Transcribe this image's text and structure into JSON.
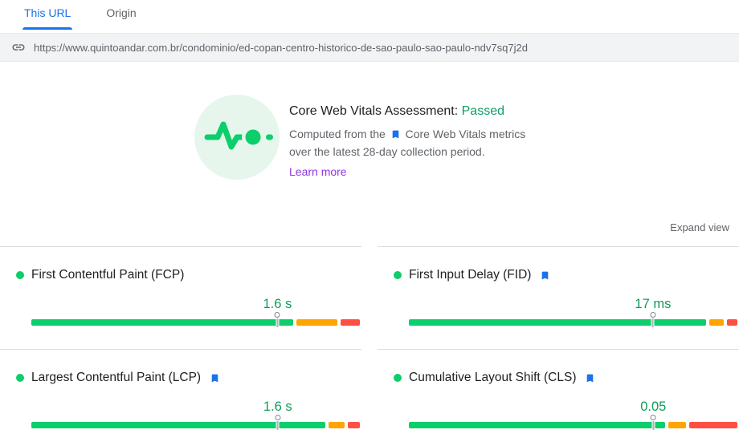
{
  "tabs": [
    {
      "label": "This URL",
      "active": true
    },
    {
      "label": "Origin",
      "active": false
    }
  ],
  "url_bar": {
    "icon": "link-icon",
    "url": "https://www.quintoandar.com.br/condominio/ed-copan-centro-historico-de-sao-paulo-sao-paulo-ndv7sq7j2d"
  },
  "assessment": {
    "icon": "pulse-icon",
    "title": "Core Web Vitals Assessment:",
    "result": "Passed",
    "line1_prefix": "Computed from the",
    "line1_metrics_label": "Core Web Vitals metrics",
    "line2": "over the latest 28-day collection period.",
    "learn_more": "Learn more"
  },
  "expand_view_label": "Expand view",
  "metrics": [
    {
      "label": "First Contentful Paint (FCP)",
      "value": "1.6 s",
      "status": "good",
      "bookmark": false,
      "distribution": {
        "good_pct": 81.3,
        "needs_improvement_pct": 12.8,
        "poor_pct": 5.9
      },
      "p75_marker_pct": 74.9
    },
    {
      "label": "First Input Delay (FID)",
      "value": "17 ms",
      "status": "good",
      "bookmark": true,
      "distribution": {
        "good_pct": 90.3,
        "needs_improvement_pct": 4.4,
        "poor_pct": 3.2
      },
      "p75_marker_pct": 74.3
    },
    {
      "label": "Largest Contentful Paint (LCP)",
      "value": "1.6 s",
      "status": "good",
      "bookmark": true,
      "distribution": {
        "good_pct": 90.0,
        "needs_improvement_pct": 4.9,
        "poor_pct": 3.7
      },
      "p75_marker_pct": 75.0
    },
    {
      "label": "Cumulative Layout Shift (CLS)",
      "value": "0.05",
      "status": "good",
      "bookmark": true,
      "distribution": {
        "good_pct": 78.6,
        "needs_improvement_pct": 5.4,
        "poor_pct": 14.8
      },
      "p75_marker_pct": 74.4
    }
  ],
  "colors": {
    "good": "#0cce6b",
    "needs_improvement": "#ffa400",
    "poor": "#ff4e42",
    "accent_blue": "#1a73e8",
    "value_green": "#0f9d58",
    "passed_green": "#0d9d63",
    "learn_more_purple": "#9334e6",
    "url_band_bg": "#f1f3f4",
    "divider": "#dadce0",
    "muted_text": "#5f6368"
  }
}
